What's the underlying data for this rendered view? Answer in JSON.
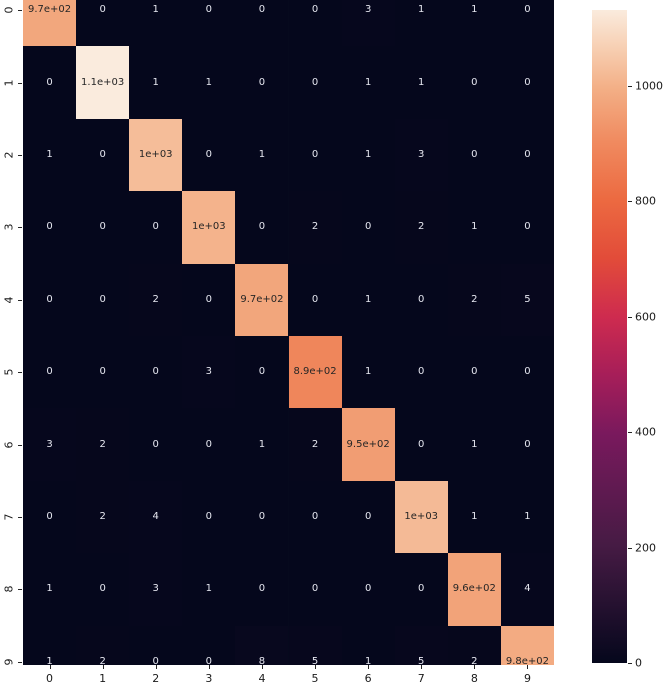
{
  "figure": {
    "background_color": "#ffffff",
    "kind": "seaborn-annotated-heatmap"
  },
  "chart_data": {
    "type": "heatmap",
    "title": "",
    "xlabel": "",
    "ylabel": "",
    "x_tick_labels": [
      "0",
      "1",
      "2",
      "3",
      "4",
      "5",
      "6",
      "7",
      "8",
      "9"
    ],
    "y_tick_labels": [
      "0",
      "1",
      "2",
      "3",
      "4",
      "5",
      "6",
      "7",
      "8",
      "9"
    ],
    "matrix_values": [
      [
        974,
        0,
        1,
        0,
        0,
        0,
        3,
        1,
        1,
        0
      ],
      [
        0,
        1131,
        1,
        1,
        0,
        0,
        1,
        1,
        0,
        0
      ],
      [
        1,
        0,
        1026,
        0,
        1,
        0,
        1,
        3,
        0,
        0
      ],
      [
        0,
        0,
        0,
        1005,
        0,
        2,
        0,
        2,
        1,
        0
      ],
      [
        0,
        0,
        2,
        0,
        972,
        0,
        1,
        0,
        2,
        5
      ],
      [
        0,
        0,
        0,
        3,
        0,
        888,
        1,
        0,
        0,
        0
      ],
      [
        3,
        2,
        0,
        0,
        1,
        2,
        949,
        0,
        1,
        0
      ],
      [
        0,
        2,
        4,
        0,
        0,
        0,
        0,
        1020,
        1,
        1
      ],
      [
        1,
        0,
        3,
        1,
        0,
        0,
        0,
        0,
        965,
        4
      ],
      [
        1,
        2,
        0,
        0,
        8,
        5,
        1,
        5,
        2,
        985
      ]
    ],
    "matrix_labels": [
      [
        "9.7e+02",
        "0",
        "1",
        "0",
        "0",
        "0",
        "3",
        "1",
        "1",
        "0"
      ],
      [
        "0",
        "1.1e+03",
        "1",
        "1",
        "0",
        "0",
        "1",
        "1",
        "0",
        "0"
      ],
      [
        "1",
        "0",
        "1e+03",
        "0",
        "1",
        "0",
        "1",
        "3",
        "0",
        "0"
      ],
      [
        "0",
        "0",
        "0",
        "1e+03",
        "0",
        "2",
        "0",
        "2",
        "1",
        "0"
      ],
      [
        "0",
        "0",
        "2",
        "0",
        "9.7e+02",
        "0",
        "1",
        "0",
        "2",
        "5"
      ],
      [
        "0",
        "0",
        "0",
        "3",
        "0",
        "8.9e+02",
        "1",
        "0",
        "0",
        "0"
      ],
      [
        "3",
        "2",
        "0",
        "0",
        "1",
        "2",
        "9.5e+02",
        "0",
        "1",
        "0"
      ],
      [
        "0",
        "2",
        "4",
        "0",
        "0",
        "0",
        "0",
        "1e+03",
        "1",
        "1"
      ],
      [
        "1",
        "0",
        "3",
        "1",
        "0",
        "0",
        "0",
        "0",
        "9.6e+02",
        "4"
      ],
      [
        "1",
        "2",
        "0",
        "0",
        "8",
        "5",
        "1",
        "5",
        "2",
        "9.8e+02"
      ]
    ],
    "vmin": 0,
    "vmax": 1131,
    "colormap_name": "rocket",
    "colormap_stops": [
      [
        0.0,
        "#05071C"
      ],
      [
        0.18,
        "#461B44"
      ],
      [
        0.35,
        "#79195D"
      ],
      [
        0.44,
        "#A61E59"
      ],
      [
        0.53,
        "#CE2B4F"
      ],
      [
        0.62,
        "#E24C39"
      ],
      [
        0.71,
        "#EC6A41"
      ],
      [
        0.8,
        "#F08B60"
      ],
      [
        0.88,
        "#F3AF86"
      ],
      [
        0.94,
        "#F7CEB1"
      ],
      [
        1.0,
        "#FAEBDD"
      ]
    ],
    "colorbar_tick_values": [
      0,
      200,
      400,
      600,
      800,
      1000
    ],
    "colorbar_tick_labels": [
      "0",
      "200",
      "400",
      "600",
      "800",
      "1000"
    ],
    "annotation_text_color_dark": "#262626",
    "annotation_text_color_light": "#E6E7F0",
    "grid_on": false,
    "legend": "colorbar-right"
  }
}
